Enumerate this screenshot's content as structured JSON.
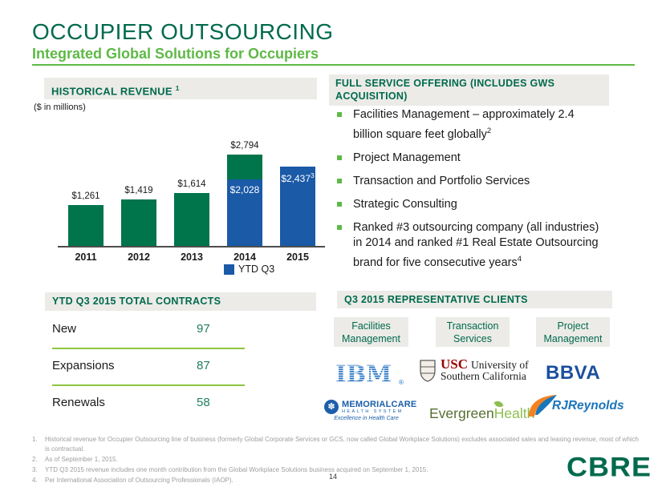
{
  "slide": {
    "title": "OCCUPIER OUTSOURCING",
    "subtitle": "Integrated Global Solutions for Occupiers",
    "page_number": "14",
    "logo_text": "CBRE"
  },
  "colors": {
    "dark_green": "#006A4D",
    "bright_green": "#5EB946",
    "separator_green": "#8CC63F",
    "value_teal": "#1F7E5C",
    "header_bg": "#ECEBE8",
    "footnote_gray": "#9E9E9E",
    "bar_green": "#00744B",
    "bar_blue": "#1A5AA7",
    "ibm_blue": "#1F70C1",
    "usc_cardinal": "#990000",
    "bbva_navy": "#1B4F9E",
    "memorialcare_blue": "#1B5FAA",
    "evergreen_dark": "#566F31",
    "evergreen_light": "#8CBE50",
    "rjr_blue": "#1B75BB",
    "rjr_orange": "#F58220"
  },
  "historical_revenue": {
    "header": "HISTORICAL REVENUE ",
    "header_sup": "1",
    "units_note": "($ in millions)"
  },
  "chart_data": {
    "type": "bar",
    "title": "HISTORICAL REVENUE",
    "units": "($ in millions)",
    "categories": [
      "2011",
      "2012",
      "2013",
      "2014",
      "2015"
    ],
    "ylim": [
      0,
      3000
    ],
    "grid": false,
    "legend_label": "YTD Q3",
    "legend_position": "bottom",
    "bars": [
      {
        "category": "2011",
        "total": 1261,
        "label": "$1,261",
        "label_position": "above",
        "color": "green"
      },
      {
        "category": "2012",
        "total": 1419,
        "label": "$1,419",
        "label_position": "above",
        "color": "green"
      },
      {
        "category": "2013",
        "total": 1614,
        "label": "$1,614",
        "label_position": "above",
        "color": "green"
      },
      {
        "category": "2014",
        "total": 2794,
        "label": "$2,794",
        "label_position": "above",
        "color": "green",
        "ytd_q3": 2028,
        "ytd_q3_label": "$2,028"
      },
      {
        "category": "2015",
        "total": 2437,
        "label": "$2,437",
        "label_superscript": "3",
        "label_position": "inside",
        "color": "blue"
      }
    ]
  },
  "full_service_offering": {
    "header": "FULL SERVICE OFFERING (INCLUDES GWS ACQUISITION)",
    "bullets": [
      {
        "text": "Facilities Management –  approximately 2.4 billion square feet globally",
        "superscript": "2"
      },
      {
        "text": "Project Management"
      },
      {
        "text": "Transaction and Portfolio Services"
      },
      {
        "text": "Strategic Consulting"
      },
      {
        "text": "Ranked #3 outsourcing company (all industries) in 2014 and ranked #1 Real Estate Outsourcing brand for five consecutive years",
        "superscript": "4"
      }
    ]
  },
  "total_contracts": {
    "header": "YTD Q3 2015 TOTAL CONTRACTS",
    "rows": [
      {
        "label": "New",
        "value": "97"
      },
      {
        "label": "Expansions",
        "value": "87"
      },
      {
        "label": "Renewals",
        "value": "58"
      }
    ]
  },
  "representative_clients": {
    "header": "Q3 2015 REPRESENTATIVE CLIENTS",
    "categories": [
      "Facilities Management",
      "Transaction Services",
      "Project Management"
    ],
    "logos": {
      "ibm": "IBM",
      "ibm_mark": "®",
      "usc_acronym": "USC",
      "usc_line1": "University of",
      "usc_line2": "Southern California",
      "bbva": "BBVA",
      "memorialcare_name": "MEMORIALCARE",
      "memorialcare_sub": "HEALTH SYSTEM",
      "memorialcare_tagline": "Excellence in Health Care",
      "memorialcare_icon_glyph": "✽",
      "evergreen_part1": "Evergreen",
      "evergreen_part2": "Health",
      "rjreynolds": "RJReynolds"
    }
  },
  "footnotes": [
    {
      "num": "1.",
      "text": "Historical revenue for Occupier Outsourcing line of business (formerly Global Corporate Services or GCS, now called Global Workplace Solutions) excludes associated sales and leasing revenue, most of which is contractual."
    },
    {
      "num": "2.",
      "text": "As of September 1, 2015."
    },
    {
      "num": "3.",
      "text": "YTD Q3 2015 revenue includes one month contribution from the Global Workplace Solutions business acquired on September 1, 2015."
    },
    {
      "num": "4.",
      "text": "Per International Association of Outsourcing Professionals (IAOP)."
    }
  ]
}
